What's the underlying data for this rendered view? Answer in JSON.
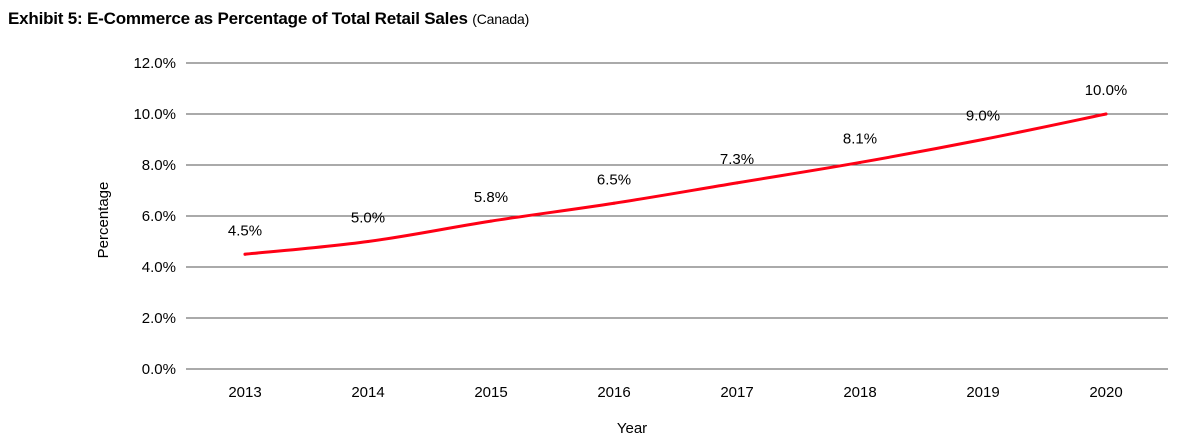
{
  "chart_data": {
    "type": "line",
    "title": "Exhibit 5: E-Commerce as Percentage of Total Retail Sales",
    "subtitle": "(Canada)",
    "xlabel": "Year",
    "ylabel": "Percentage",
    "categories": [
      "2013",
      "2014",
      "2015",
      "2016",
      "2017",
      "2018",
      "2019",
      "2020"
    ],
    "series": [
      {
        "values": [
          4.5,
          5.0,
          5.8,
          6.5,
          7.3,
          8.1,
          9.0,
          10.0
        ],
        "color": "#ff0015"
      }
    ],
    "data_labels": [
      "4.5%",
      "5.0%",
      "5.8%",
      "6.5%",
      "7.3%",
      "8.1%",
      "9.0%",
      "10.0%"
    ],
    "ylim": [
      0,
      12
    ],
    "yticks": [
      0,
      2,
      4,
      6,
      8,
      10,
      12
    ],
    "ytick_labels": [
      "0.0%",
      "2.0%",
      "4.0%",
      "6.0%",
      "8.0%",
      "10.0%",
      "12.0%"
    ],
    "grid": true,
    "legend": "none",
    "gridline_color": "#555555"
  }
}
